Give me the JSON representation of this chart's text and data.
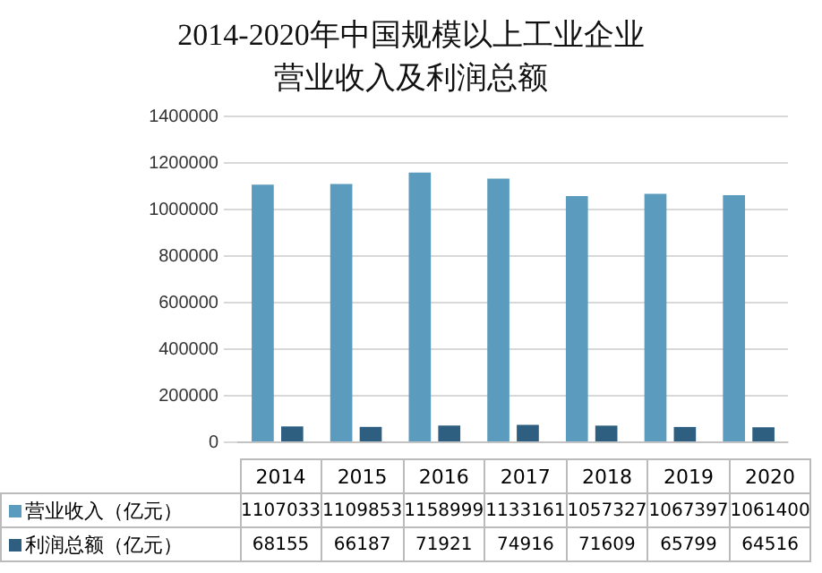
{
  "chart_data": {
    "type": "bar",
    "title": "2014-2020年中国规模以上工业企业营业收入及利润总额",
    "categories": [
      "2014",
      "2015",
      "2016",
      "2017",
      "2018",
      "2019",
      "2020"
    ],
    "series": [
      {
        "name": "营业收入（亿元）",
        "color": "#5b9bbd",
        "values": [
          1107033,
          1109853,
          1158999,
          1133161,
          1057327,
          1067397,
          1061400
        ]
      },
      {
        "name": "利润总额（亿元）",
        "color": "#2f5f80",
        "values": [
          68155,
          66187,
          71921,
          74916,
          71609,
          65799,
          64516
        ]
      }
    ],
    "ylim": [
      0,
      1400000
    ],
    "yticks": [
      0,
      200000,
      400000,
      600000,
      800000,
      1000000,
      1200000,
      1400000
    ],
    "grid": "y",
    "legend": "bottom",
    "data_labels": true
  }
}
